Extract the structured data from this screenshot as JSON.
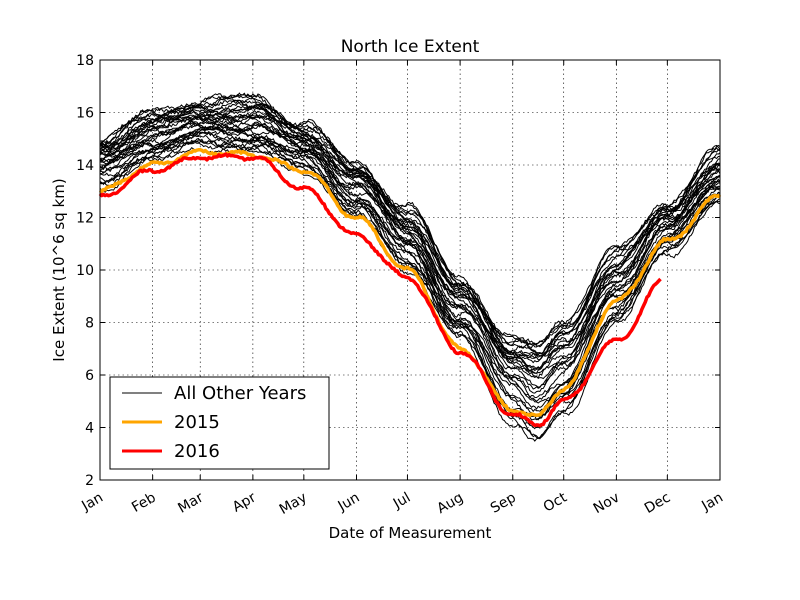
{
  "chart_data": {
    "type": "line",
    "title": "North Ice Extent",
    "xlabel": "Date of Measurement",
    "ylabel": "Ice Extent (10^6 sq km)",
    "xlim": [
      "Jan",
      "Jan"
    ],
    "ylim": [
      2,
      18
    ],
    "yticks": [
      2,
      4,
      6,
      8,
      10,
      12,
      14,
      16,
      18
    ],
    "xticks": [
      "Jan",
      "Feb",
      "Mar",
      "Apr",
      "May",
      "Jun",
      "Jul",
      "Aug",
      "Sep",
      "Oct",
      "Nov",
      "Dec",
      "Jan"
    ],
    "grid": true,
    "legend_position": "lower-left",
    "colors": {
      "other_years": "#000000",
      "y2015": "#ffa500",
      "y2016": "#ff0000"
    },
    "x": [
      "Jan 1",
      "Feb 1",
      "Mar 1",
      "Apr 1",
      "May 1",
      "Jun 1",
      "Jul 1",
      "Aug 1",
      "Sep 1",
      "Sep 15",
      "Oct 1",
      "Nov 1",
      "Dec 1",
      "Dec 31"
    ],
    "series": [
      {
        "name": "2015",
        "values": [
          13.0,
          14.0,
          14.5,
          14.4,
          13.8,
          12.0,
          10.0,
          7.0,
          4.7,
          4.4,
          5.5,
          8.8,
          11.1,
          12.8
        ]
      },
      {
        "name": "2016",
        "values": [
          12.8,
          13.8,
          14.3,
          14.3,
          13.1,
          11.3,
          9.7,
          6.9,
          4.5,
          4.1,
          5.0,
          7.3,
          9.7,
          null
        ]
      }
    ],
    "other_years": {
      "name": "All Other Years",
      "mean_values": [
        14.3,
        15.3,
        15.6,
        15.7,
        14.8,
        13.4,
        11.4,
        8.7,
        6.5,
        6.0,
        6.6,
        9.6,
        11.7,
        13.6
      ],
      "min_values": [
        13.1,
        14.2,
        14.7,
        14.5,
        13.8,
        12.0,
        10.0,
        7.4,
        4.1,
        3.4,
        4.4,
        8.0,
        10.6,
        12.6
      ],
      "max_values": [
        15.0,
        16.0,
        16.5,
        16.6,
        15.6,
        14.0,
        12.4,
        9.7,
        7.3,
        7.2,
        8.2,
        10.8,
        12.6,
        14.6
      ]
    },
    "legend": [
      "All Other Years",
      "2015",
      "2016"
    ]
  }
}
